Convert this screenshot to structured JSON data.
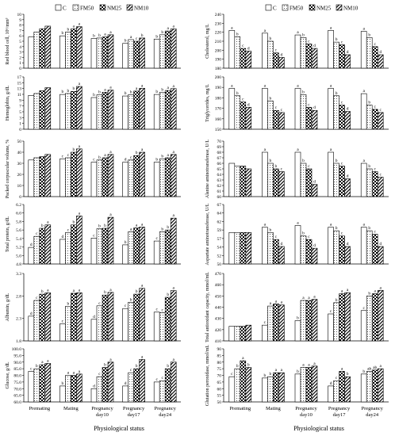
{
  "legend": [
    "C",
    "FM50",
    "NM25",
    "NM10"
  ],
  "xlabel": "Physiological status",
  "categories": [
    "Premating",
    "Mating",
    "Pregnancy\nday10",
    "Pregnancy\nday17",
    "Pregnancy\nday24"
  ],
  "chart_data": [
    {
      "type": "bar",
      "ylabel": "Red blood cell, 10⁶/mm³",
      "ylim": [
        0,
        10
      ],
      "ticks": [
        "0",
        "1",
        "2",
        "3",
        "4",
        "5",
        "6",
        "7",
        "8",
        "9",
        "10"
      ],
      "categories": [
        "Premating",
        "Mating",
        "Pregnancy day10",
        "Pregnancy day17",
        "Pregnancy day24"
      ],
      "series": [
        {
          "name": "C",
          "values": [
            5.8,
            6.0,
            5.5,
            4.6,
            5.4
          ]
        },
        {
          "name": "FM50",
          "values": [
            6.7,
            6.7,
            5.6,
            5.3,
            6.2
          ]
        },
        {
          "name": "NM25",
          "values": [
            7.3,
            7.3,
            5.8,
            5.0,
            6.9
          ]
        },
        {
          "name": "NM10",
          "values": [
            7.8,
            7.7,
            6.2,
            5.6,
            7.3
          ]
        }
      ],
      "labels": [
        [],
        [
          "b",
          "b",
          "a",
          "a"
        ],
        [
          "b",
          "b",
          "a",
          "a"
        ],
        [
          "b",
          "a",
          "c",
          "b"
        ],
        [
          "b",
          "b",
          "a",
          "a"
        ]
      ]
    },
    {
      "type": "bar",
      "ylabel": "Hemoglobin, g/dL",
      "ylim": [
        0,
        17
      ],
      "ticks": [
        "0",
        "1",
        "3",
        "5",
        "7",
        "9",
        "11",
        "13",
        "15",
        "17"
      ],
      "categories": [
        "Premating",
        "Mating",
        "Pregnancy day10",
        "Pregnancy day17",
        "Pregnancy day24"
      ],
      "series": [
        {
          "name": "C",
          "values": [
            11.0,
            11.3,
            10.3,
            10.8,
            11.3
          ]
        },
        {
          "name": "FM50",
          "values": [
            11.6,
            11.6,
            11.2,
            11.2,
            12.0
          ]
        },
        {
          "name": "NM25",
          "values": [
            12.5,
            12.3,
            12.0,
            12.4,
            12.6
          ]
        },
        {
          "name": "NM10",
          "values": [
            13.5,
            13.9,
            12.7,
            13.3,
            13.2
          ]
        }
      ],
      "labels": [
        [],
        [
          "b",
          "b",
          "b",
          "a"
        ],
        [
          "b",
          "b",
          "a",
          "a"
        ],
        [
          "b",
          "b",
          "a",
          "a"
        ],
        [
          "b",
          "b",
          "a",
          "a"
        ]
      ]
    },
    {
      "type": "bar",
      "ylabel": "Packed corpuscular volume, %",
      "ylim": [
        0,
        50
      ],
      "ticks": [
        "0",
        "10",
        "20",
        "30",
        "40",
        "50"
      ],
      "categories": [
        "Premating",
        "Mating",
        "Pregnancy day10",
        "Pregnancy day17",
        "Pregnancy day24"
      ],
      "series": [
        {
          "name": "C",
          "values": [
            33,
            34,
            31,
            31,
            31
          ]
        },
        {
          "name": "FM50",
          "values": [
            35,
            35,
            33,
            33,
            34
          ]
        },
        {
          "name": "NM25",
          "values": [
            36,
            40,
            35,
            37,
            35
          ]
        },
        {
          "name": "NM10",
          "values": [
            38,
            43,
            38,
            40,
            38
          ]
        }
      ],
      "labels": [
        [],
        [
          "c",
          "c",
          "b",
          "a"
        ],
        [
          "c",
          "b",
          "a",
          "a"
        ],
        [
          "d",
          "c",
          "b",
          "a"
        ],
        [
          "b",
          "b",
          "a",
          "a"
        ]
      ]
    },
    {
      "type": "bar",
      "ylabel": "Total protein, g/dL",
      "ylim": [
        4.8,
        6.2
      ],
      "ticks": [
        "4.8",
        "5.0",
        "5.2",
        "5.4",
        "5.6",
        "5.8",
        "6.0",
        "6.2"
      ],
      "categories": [
        "Premating",
        "Mating",
        "Pregnancy day10",
        "Pregnancy day17",
        "Pregnancy day24"
      ],
      "series": [
        {
          "name": "C",
          "values": [
            5.19,
            5.38,
            5.41,
            5.25,
            5.34
          ]
        },
        {
          "name": "FM50",
          "values": [
            5.45,
            5.54,
            5.63,
            5.56,
            5.56
          ]
        },
        {
          "name": "NM25",
          "values": [
            5.64,
            5.72,
            5.64,
            5.65,
            5.6
          ]
        },
        {
          "name": "NM10",
          "values": [
            5.72,
            5.93,
            5.9,
            5.67,
            5.88
          ]
        }
      ],
      "labels": [
        [
          "d",
          "c",
          "b",
          "a"
        ],
        [
          "d",
          "c",
          "b",
          "a"
        ],
        [
          "c",
          "b",
          "b",
          "a"
        ],
        [
          "b",
          "a",
          "a",
          "a"
        ],
        [
          "c",
          "b",
          "b",
          "a"
        ]
      ]
    },
    {
      "type": "bar",
      "ylabel": "Albumin, g/dL",
      "ylim": [
        1.8,
        3.3
      ],
      "ticks": [
        "1.8",
        "2.3",
        "2.8",
        "3.3"
      ],
      "categories": [
        "Premating",
        "Mating",
        "Pregnancy day10",
        "Pregnancy day17",
        "Pregnancy day24"
      ],
      "series": [
        {
          "name": "C",
          "values": [
            2.35,
            2.18,
            2.28,
            2.52,
            2.44
          ]
        },
        {
          "name": "FM50",
          "values": [
            2.7,
            2.57,
            2.58,
            2.66,
            2.43
          ]
        },
        {
          "name": "NM25",
          "values": [
            2.84,
            2.86,
            2.82,
            2.84,
            2.77
          ]
        },
        {
          "name": "NM10",
          "values": [
            2.87,
            2.87,
            2.88,
            2.97,
            2.92
          ]
        }
      ],
      "labels": [
        [
          "d",
          "c",
          "b",
          "a"
        ],
        [
          "c",
          "b",
          "a",
          "a"
        ],
        [
          "d",
          "c",
          "b",
          "a"
        ],
        [
          "c",
          "b",
          "b",
          "a"
        ],
        [
          "c",
          "c",
          "b",
          "a"
        ]
      ]
    },
    {
      "type": "bar",
      "ylabel": "Glucose, g/dL",
      "ylim": [
        60,
        100
      ],
      "ticks": [
        "60.0",
        "65.0",
        "70.0",
        "75.0",
        "80.0",
        "85.0",
        "90.0",
        "95.0",
        "100.0"
      ],
      "categories": [
        "Premating",
        "Mating",
        "Pregnancy day10",
        "Pregnancy day17",
        "Pregnancy day24"
      ],
      "series": [
        {
          "name": "C",
          "values": [
            83,
            72,
            70,
            72,
            75
          ]
        },
        {
          "name": "FM50",
          "values": [
            85,
            80,
            79,
            82,
            76
          ]
        },
        {
          "name": "NM25",
          "values": [
            88,
            80,
            86,
            85,
            85
          ]
        },
        {
          "name": "NM10",
          "values": [
            89,
            81,
            90,
            92,
            90
          ]
        }
      ],
      "labels": [
        [
          "c",
          "b",
          "a",
          "a"
        ],
        [
          "b",
          "a",
          "a",
          "a"
        ],
        [
          "d",
          "c",
          "b",
          "a"
        ],
        [
          "d",
          "c",
          "b",
          "a"
        ],
        [
          "c",
          "c",
          "b",
          "a"
        ]
      ]
    },
    {
      "type": "bar",
      "ylabel": "Cholesterol, mg/L",
      "ylim": [
        180,
        240
      ],
      "ticks": [
        "180",
        "190",
        "200",
        "210",
        "220",
        "230",
        "240"
      ],
      "categories": [
        "Premating",
        "Mating",
        "Pregnancy day10",
        "Pregnancy day17",
        "Pregnancy day24"
      ],
      "series": [
        {
          "name": "C",
          "values": [
            222,
            219,
            217,
            222,
            221
          ]
        },
        {
          "name": "FM50",
          "values": [
            215,
            210,
            214,
            209,
            214
          ]
        },
        {
          "name": "NM25",
          "values": [
            202,
            197,
            207,
            206,
            204
          ]
        },
        {
          "name": "NM10",
          "values": [
            199,
            192,
            202,
            195,
            195
          ]
        }
      ],
      "labels": [
        [
          "a",
          "b",
          "c",
          "d"
        ],
        [
          "a",
          "b",
          "c",
          "d"
        ],
        [
          "a",
          "b",
          "c",
          "d"
        ],
        [
          "a",
          "b",
          "c",
          "d"
        ],
        [
          "a",
          "b",
          "c",
          "d"
        ]
      ]
    },
    {
      "type": "bar",
      "ylabel": "Triglycerides, mg/L",
      "ylim": [
        150,
        200
      ],
      "ticks": [
        "150",
        "160",
        "170",
        "180",
        "190",
        "200"
      ],
      "categories": [
        "Premating",
        "Mating",
        "Pregnancy day10",
        "Pregnancy day17",
        "Pregnancy day24"
      ],
      "series": [
        {
          "name": "C",
          "values": [
            189,
            189,
            189,
            189,
            184
          ]
        },
        {
          "name": "FM50",
          "values": [
            182,
            177,
            183,
            182,
            173
          ]
        },
        {
          "name": "NM25",
          "values": [
            176,
            168,
            171,
            173,
            169
          ]
        },
        {
          "name": "NM10",
          "values": [
            171,
            166,
            168,
            167,
            166
          ]
        }
      ],
      "labels": [
        [
          "a",
          "b",
          "c",
          "d"
        ],
        [
          "a",
          "b",
          "c",
          "c"
        ],
        [
          "a",
          "b",
          "c",
          "d"
        ],
        [
          "a",
          "b",
          "c",
          "d"
        ],
        [
          "a",
          "b",
          "c",
          "c"
        ]
      ]
    },
    {
      "type": "bar",
      "ylabel": "Alanine aminotransferase, U/L",
      "ylim": [
        60,
        70
      ],
      "ticks": [
        "60",
        "61",
        "62",
        "63",
        "64",
        "65",
        "66",
        "67",
        "68",
        "69",
        "70"
      ],
      "categories": [
        "Premating",
        "Mating",
        "Pregnancy day10",
        "Pregnancy day17",
        "Pregnancy day24"
      ],
      "series": [
        {
          "name": "C",
          "values": [
            66,
            68,
            68,
            68,
            66
          ]
        },
        {
          "name": "FM50",
          "values": [
            65.5,
            66,
            66,
            66,
            65
          ]
        },
        {
          "name": "NM25",
          "values": [
            65.5,
            65,
            65,
            65.5,
            64.5
          ]
        },
        {
          "name": "NM10",
          "values": [
            65,
            64.5,
            62.2,
            63.2,
            63.5
          ]
        }
      ],
      "labels": [
        [],
        [
          "a",
          "b",
          "b",
          "c"
        ],
        [
          "a",
          "b",
          "c",
          "d"
        ],
        [
          "a",
          "b",
          "c",
          "d"
        ],
        [
          "a",
          "b",
          "c",
          "c"
        ]
      ]
    },
    {
      "type": "bar",
      "ylabel": "Aspartate aminotransferase, U/L",
      "ylim": [
        50,
        67
      ],
      "ticks": [
        "50",
        "52",
        "54",
        "57",
        "59",
        "62",
        "64",
        "67"
      ],
      "categories": [
        "Premating",
        "Mating",
        "Pregnancy day10",
        "Pregnancy day17",
        "Pregnancy day24"
      ],
      "series": [
        {
          "name": "C",
          "values": [
            59,
            60.5,
            61,
            60.5,
            60.5
          ]
        },
        {
          "name": "FM50",
          "values": [
            59,
            59,
            58,
            59.5,
            59.5
          ]
        },
        {
          "name": "NM25",
          "values": [
            59,
            57,
            57,
            58,
            58.5
          ]
        },
        {
          "name": "NM10",
          "values": [
            59,
            55,
            54.5,
            55,
            55
          ]
        }
      ],
      "labels": [
        [],
        [
          "a",
          "b",
          "c",
          "d"
        ],
        [
          "a",
          "b",
          "c",
          "d"
        ],
        [
          "a",
          "b",
          "c",
          "d"
        ],
        [
          "a",
          "b",
          "c",
          "d"
        ]
      ]
    },
    {
      "type": "bar",
      "ylabel": "Total antioxidant capacity, mmol/mL",
      "ylim": [
        410,
        470
      ],
      "ticks": [
        "410",
        "420",
        "430",
        "440",
        "450",
        "460",
        "470"
      ],
      "categories": [
        "Premating",
        "Mating",
        "Pregnancy day10",
        "Pregnancy day17",
        "Pregnancy day24"
      ],
      "series": [
        {
          "name": "C",
          "values": [
            423,
            424,
            428,
            434,
            437
          ]
        },
        {
          "name": "FM50",
          "values": [
            423,
            441,
            446,
            444,
            450
          ]
        },
        {
          "name": "NM25",
          "values": [
            423,
            443,
            446,
            452,
            452
          ]
        },
        {
          "name": "NM10",
          "values": [
            424,
            442,
            447,
            453,
            455
          ]
        }
      ],
      "labels": [
        [],
        [
          "c",
          "a",
          "a",
          "a"
        ],
        [
          "b",
          "a",
          "a",
          "a"
        ],
        [
          "c",
          "b",
          "a",
          "a"
        ],
        [
          "c",
          "b",
          "a",
          "a"
        ]
      ]
    },
    {
      "type": "bar",
      "ylabel": "Glutation peroxidase, mmol/mL",
      "ylim": [
        50,
        90
      ],
      "ticks": [
        "50",
        "55",
        "60",
        "65",
        "70",
        "75",
        "80",
        "85",
        "90"
      ],
      "categories": [
        "Premating",
        "Mating",
        "Pregnancy day10",
        "Pregnancy day17",
        "Pregnancy day24"
      ],
      "series": [
        {
          "name": "C",
          "values": [
            69,
            68,
            71,
            62,
            71
          ]
        },
        {
          "name": "FM50",
          "values": [
            75,
            69,
            76,
            66,
            73
          ]
        },
        {
          "name": "NM25",
          "values": [
            81,
            72,
            76,
            73,
            74
          ]
        },
        {
          "name": "NM10",
          "values": [
            76,
            72,
            77,
            69,
            75
          ]
        }
      ],
      "labels": [
        [
          "c",
          "b",
          "a",
          "b"
        ],
        [
          "b",
          "b",
          "a",
          "a"
        ],
        [
          "b",
          "a",
          "a",
          "a"
        ],
        [
          "d",
          "c",
          "a",
          "b"
        ],
        [
          "b",
          "ab",
          "ab",
          "a"
        ]
      ]
    }
  ]
}
